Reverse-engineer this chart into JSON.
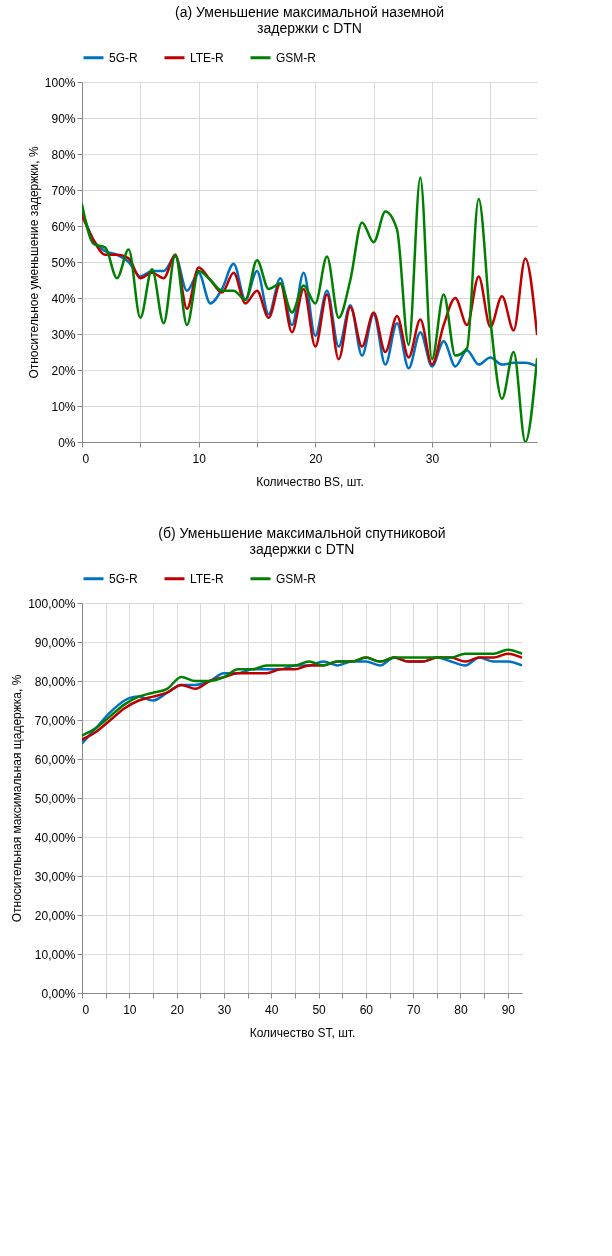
{
  "chart_data": [
    {
      "type": "line",
      "title": "(а) Уменьшение максимальной наземной задержки с DTN",
      "xlabel": "Количество BS, шт.",
      "ylabel": "Относительное уменьшение задержки, %",
      "x": [
        0,
        1,
        2,
        3,
        4,
        5,
        6,
        7,
        8,
        9,
        10,
        11,
        12,
        13,
        14,
        15,
        16,
        17,
        18,
        19,
        20,
        21,
        22,
        23,
        24,
        25,
        26,
        27,
        28,
        29,
        30,
        31,
        32,
        33,
        34,
        35,
        36,
        37,
        38,
        39
      ],
      "series": [
        {
          "name": "5G-R",
          "color": "#0070c0",
          "values": [
            64,
            56,
            53,
            52,
            50,
            46,
            47.5,
            47.5,
            51.5,
            42,
            47,
            38.5,
            42.5,
            49.5,
            39.5,
            47.5,
            35.5,
            45.5,
            32.5,
            47,
            29.5,
            42,
            26.5,
            38,
            24,
            35.5,
            21.5,
            33,
            20.5,
            30.5,
            21,
            28,
            21,
            25.5,
            21.5,
            23.5,
            21.5,
            22,
            22,
            21
          ]
        },
        {
          "name": "LTE-R",
          "color": "#c00000",
          "values": [
            63,
            56,
            52,
            52,
            51,
            45.5,
            47,
            45.5,
            52,
            37,
            48.5,
            45,
            41.5,
            47,
            38.5,
            42,
            34.5,
            44,
            30.5,
            42.5,
            26.5,
            41,
            23,
            37.5,
            26.5,
            36,
            25,
            35,
            23.5,
            34,
            21.5,
            32.5,
            40,
            32.5,
            46,
            32,
            40.5,
            31,
            51,
            30
          ]
        },
        {
          "name": "GSM-R",
          "color": "#008000",
          "values": [
            66,
            55,
            54,
            45.5,
            53.5,
            34.5,
            48,
            33,
            52,
            32.5,
            47.5,
            45,
            42,
            42,
            39.5,
            50.5,
            42.5,
            44,
            36,
            43.5,
            38.5,
            51.5,
            34.5,
            45,
            61,
            55.5,
            64,
            59,
            27,
            73.5,
            23,
            41,
            24,
            26,
            67.5,
            34,
            12,
            25,
            0,
            23
          ]
        }
      ],
      "xlim": [
        0,
        39
      ],
      "xticks": [
        0,
        {
          "value": 5,
          "label": null
        },
        10,
        {
          "value": 15,
          "label": null
        },
        20,
        {
          "value": 25,
          "label": null
        },
        30,
        {
          "value": 35,
          "label": null
        }
      ],
      "ylim": [
        0,
        100
      ],
      "yticks": [
        {
          "value": 0,
          "label": "0%"
        },
        {
          "value": 10,
          "label": "10%"
        },
        {
          "value": 20,
          "label": "20%"
        },
        {
          "value": 30,
          "label": "30%"
        },
        {
          "value": 40,
          "label": "40%"
        },
        {
          "value": 50,
          "label": "50%"
        },
        {
          "value": 60,
          "label": "60%"
        },
        {
          "value": 70,
          "label": "70%"
        },
        {
          "value": 80,
          "label": "80%"
        },
        {
          "value": 90,
          "label": "90%"
        },
        {
          "value": 100,
          "label": "100%"
        }
      ],
      "grid": true,
      "legend": "top",
      "marker": "none",
      "line_style": "solid"
    },
    {
      "type": "line",
      "title": "(б) Уменьшение максимальной спутниковой задержки с DTN",
      "xlabel": "Количество ST, шт.",
      "ylabel": "Относительная максимальная щадержка, %",
      "x": [
        0,
        3,
        6,
        9,
        12,
        15,
        18,
        21,
        24,
        27,
        30,
        33,
        36,
        39,
        42,
        45,
        48,
        51,
        54,
        57,
        60,
        63,
        66,
        69,
        72,
        75,
        78,
        81,
        84,
        87,
        90,
        93
      ],
      "series": [
        {
          "name": "5G-R",
          "color": "#0070c0",
          "values": [
            64,
            68,
            72,
            75,
            76,
            75,
            77,
            79,
            79,
            80,
            82,
            82,
            83,
            83,
            83,
            84,
            84,
            85,
            84,
            85,
            85,
            84,
            86,
            85,
            85,
            86,
            85,
            84,
            86,
            85,
            85,
            84
          ]
        },
        {
          "name": "LTE-R",
          "color": "#c00000",
          "values": [
            65,
            67,
            70,
            73,
            75,
            76,
            77,
            79,
            78,
            80,
            81,
            82,
            82,
            82,
            83,
            83,
            84,
            84,
            85,
            85,
            86,
            85,
            86,
            85,
            85,
            86,
            86,
            85,
            86,
            86,
            87,
            86
          ]
        },
        {
          "name": "GSM-R",
          "color": "#008000",
          "values": [
            66,
            68,
            71,
            74,
            76,
            77,
            78,
            81,
            80,
            80,
            81,
            83,
            83,
            84,
            84,
            84,
            85,
            84,
            85,
            85,
            86,
            85,
            86,
            86,
            86,
            86,
            86,
            87,
            87,
            87,
            88,
            87
          ]
        }
      ],
      "xlim": [
        0,
        93
      ],
      "xticks": [
        0,
        {
          "value": 5,
          "label": null
        },
        10,
        {
          "value": 15,
          "label": null
        },
        20,
        {
          "value": 25,
          "label": null
        },
        30,
        {
          "value": 35,
          "label": null
        },
        40,
        {
          "value": 45,
          "label": null
        },
        50,
        {
          "value": 55,
          "label": null
        },
        60,
        {
          "value": 65,
          "label": null
        },
        70,
        {
          "value": 75,
          "label": null
        },
        80,
        {
          "value": 85,
          "label": null
        },
        90
      ],
      "ylim": [
        0,
        100
      ],
      "yticks": [
        {
          "value": 0,
          "label": "0,00%"
        },
        {
          "value": 10,
          "label": "10,00%"
        },
        {
          "value": 20,
          "label": "20,00%"
        },
        {
          "value": 30,
          "label": "30,00%"
        },
        {
          "value": 40,
          "label": "40,00%"
        },
        {
          "value": 50,
          "label": "50,00%"
        },
        {
          "value": 60,
          "label": "60,00%"
        },
        {
          "value": 70,
          "label": "70,00%"
        },
        {
          "value": 80,
          "label": "80,00%"
        },
        {
          "value": 90,
          "label": "90,00%"
        },
        {
          "value": 100,
          "label": "100,00%"
        }
      ],
      "grid": true,
      "legend": "top",
      "marker": "none",
      "line_style": "solid"
    }
  ]
}
